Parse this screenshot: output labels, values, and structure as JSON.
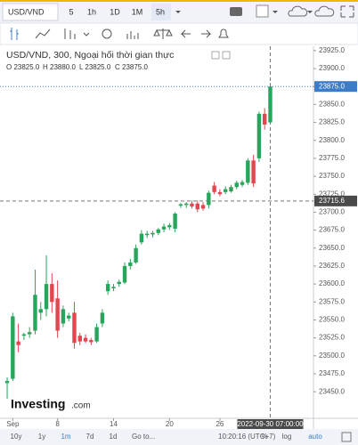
{
  "toolbar": {
    "symbol": "USD/VND",
    "intervals": [
      "5",
      "1h",
      "1D",
      "1M",
      "5h"
    ]
  },
  "legend": {
    "title": "USD/VND, 300, Ngoại hối thời gian thực",
    "ohlc": [
      "O 23825.0",
      "H 23880.0",
      "L 23825.0",
      "C 23875.0"
    ]
  },
  "logo": {
    "brand": "Investing",
    "suffix": ".com"
  },
  "bottom_bar": {
    "ranges": [
      "10y",
      "1y",
      "1m",
      "7d",
      "1d"
    ],
    "goto": "Go to...",
    "time": "10:20:16 (UTC+7)",
    "options": [
      "%",
      "log",
      "auto"
    ]
  },
  "chart_data": {
    "type": "candlestick",
    "up_color": "#26a65b",
    "down_color": "#e4464f",
    "xlim": [
      -1.28,
      54.72
    ],
    "xticks": [
      {
        "value": 1,
        "label": "Sep"
      },
      {
        "value": 9,
        "label": "8"
      },
      {
        "value": 19,
        "label": "14"
      },
      {
        "value": 29,
        "label": "20"
      },
      {
        "value": 38,
        "label": "26"
      }
    ],
    "ylim": [
      23413,
      23931
    ],
    "yticks": [
      {
        "value": 23450,
        "label": "23450.0"
      },
      {
        "value": 23475,
        "label": "23475.0"
      },
      {
        "value": 23500,
        "label": "23500.0"
      },
      {
        "value": 23525,
        "label": "23525.0"
      },
      {
        "value": 23550,
        "label": "23550.0"
      },
      {
        "value": 23575,
        "label": "23575.0"
      },
      {
        "value": 23600,
        "label": "23600.0"
      },
      {
        "value": 23625,
        "label": "23625.0"
      },
      {
        "value": 23650,
        "label": "23650.0"
      },
      {
        "value": 23675,
        "label": "23675.0"
      },
      {
        "value": 23700,
        "label": "23700.0"
      },
      {
        "value": 23725,
        "label": "23725.0"
      },
      {
        "value": 23750,
        "label": "23750.0"
      },
      {
        "value": 23775,
        "label": "23775.0"
      },
      {
        "value": 23800,
        "label": "23800.0"
      },
      {
        "value": 23825,
        "label": "23825.0"
      },
      {
        "value": 23850,
        "label": "23850.0"
      },
      {
        "value": 23875,
        "label": "23875.0"
      },
      {
        "value": 23900,
        "label": "23900.0"
      },
      {
        "value": 23925,
        "label": "23925.0"
      }
    ],
    "open": [
      23462,
      23468,
      23520,
      23528,
      23530,
      23535,
      23560,
      23565,
      23600,
      23580,
      23545,
      23552,
      23560,
      23528,
      23525,
      23522,
      23520,
      23545,
      23590,
      23594,
      23600,
      23602,
      23625,
      23630,
      23658,
      23668,
      23669,
      23671,
      23676,
      23679,
      23677,
      23709,
      23710,
      23712,
      23712,
      23710,
      23710,
      23737,
      23728,
      23728,
      23729,
      23735,
      23738,
      23741,
      23772,
      23775,
      23837,
      23825
    ],
    "high": [
      23470,
      23560,
      23545,
      23532,
      23540,
      23620,
      23575,
      23640,
      23615,
      23605,
      23570,
      23560,
      23575,
      23532,
      23530,
      23525,
      23545,
      23565,
      23605,
      23600,
      23606,
      23630,
      23635,
      23655,
      23675,
      23674,
      23674,
      23678,
      23684,
      23685,
      23700,
      23713,
      23714,
      23716,
      23716,
      23714,
      23730,
      23742,
      23732,
      23736,
      23738,
      23744,
      23745,
      23775,
      23780,
      23840,
      23845,
      23880
    ],
    "low": [
      23440,
      23465,
      23505,
      23522,
      23525,
      23530,
      23550,
      23555,
      23560,
      23525,
      23540,
      23548,
      23510,
      23515,
      23518,
      23515,
      23518,
      23540,
      23585,
      23590,
      23596,
      23600,
      23620,
      23628,
      23655,
      23664,
      23665,
      23668,
      23672,
      23675,
      23672,
      23706,
      23706,
      23705,
      23700,
      23702,
      23705,
      23725,
      23722,
      23725,
      23727,
      23732,
      23735,
      23738,
      23735,
      23770,
      23815,
      23825
    ],
    "close": [
      23465,
      23555,
      23515,
      23530,
      23533,
      23585,
      23565,
      23600,
      23575,
      23535,
      23565,
      23556,
      23518,
      23520,
      23520,
      23519,
      23540,
      23560,
      23600,
      23596,
      23603,
      23625,
      23630,
      23650,
      23670,
      23670,
      23671,
      23676,
      23680,
      23682,
      23698,
      23711,
      23712,
      23708,
      23704,
      23705,
      23727,
      23728,
      23725,
      23732,
      23735,
      23741,
      23742,
      23772,
      23740,
      23837,
      23822,
      23875
    ],
    "last_price": {
      "value": 23875,
      "label": "23875.0"
    },
    "crosshair": {
      "value": 23715.6,
      "label": "23715.6",
      "index": 47,
      "x_label": "2022-09-30 07:00:00"
    }
  }
}
